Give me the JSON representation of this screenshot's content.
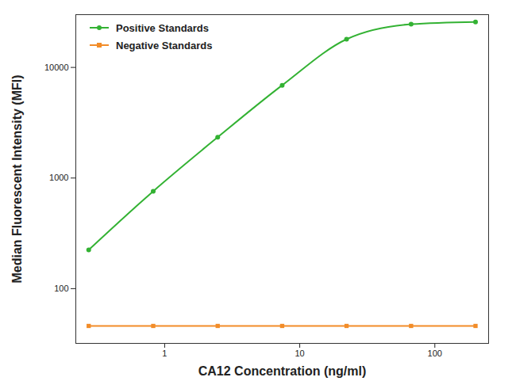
{
  "chart_data": {
    "type": "line",
    "x_label": "CA12 Concentration (ng/ml)",
    "y_label": "Median Fluorescent Intensity (MFI)",
    "log": true,
    "grid": false,
    "legend": "top-left",
    "x": [
      0.274,
      0.823,
      2.47,
      7.41,
      22.2,
      66.7,
      200
    ],
    "series": [
      {
        "name": "Positive Standards",
        "color": "#33b233",
        "marker": "circle",
        "line_style": "solid",
        "values": [
          224,
          760,
          2340,
          6900,
          18000,
          24600,
          25800
        ]
      },
      {
        "name": "Negative Standards",
        "color": "#f28c28",
        "marker": "square",
        "line_style": "solid",
        "values": [
          46,
          46,
          46,
          46,
          46,
          46,
          46
        ]
      }
    ],
    "xlim": [
      0.22,
      250
    ],
    "xticks": [
      1,
      10,
      100
    ],
    "ylim": [
      32,
      30000
    ],
    "yticks": [
      100,
      1000,
      10000
    ]
  }
}
